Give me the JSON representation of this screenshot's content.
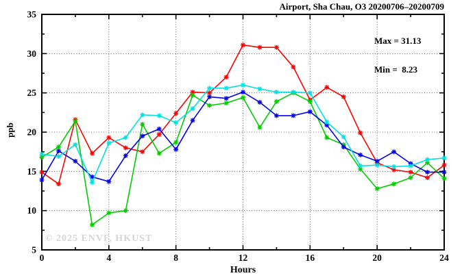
{
  "title": "Airport, Sha Chau, O3 20200706–20200709",
  "legend": {
    "max_label": "Max = 31.13",
    "min_label": "Min =  8.23"
  },
  "watermark": "© 2025 ENVF, HKUST",
  "chart_data": {
    "type": "line",
    "title": "Airport, Sha Chau, O3 20200706–20200709",
    "xlabel": "Hours",
    "ylabel": "ppb",
    "xlim": [
      0,
      24
    ],
    "ylim": [
      5,
      35
    ],
    "xticks": [
      0,
      4,
      8,
      12,
      16,
      20,
      24
    ],
    "yticks": [
      5,
      10,
      15,
      20,
      25,
      30,
      35
    ],
    "x_minor_step": 2,
    "y_minor_step": 2.5,
    "grid": true,
    "legend_position": "top-right-inside",
    "marker": "asterisk",
    "stats": {
      "max": 31.13,
      "min": 8.23
    },
    "x": [
      0,
      1,
      2,
      3,
      4,
      5,
      6,
      7,
      8,
      9,
      10,
      11,
      12,
      13,
      14,
      15,
      16,
      17,
      18,
      19,
      20,
      21,
      22,
      23,
      24
    ],
    "series": [
      {
        "name": "red",
        "color": "#ff0000",
        "values": [
          14.9,
          13.4,
          21.6,
          17.3,
          19.3,
          18.0,
          17.5,
          19.7,
          22.4,
          25.1,
          25.0,
          27.0,
          31.1,
          30.8,
          30.8,
          28.3,
          24.1,
          25.7,
          24.5,
          19.9,
          16.1,
          15.2,
          14.9,
          14.2,
          15.8
        ]
      },
      {
        "name": "green",
        "color": "#00cc00",
        "values": [
          16.8,
          18.1,
          21.4,
          8.2,
          9.7,
          10.0,
          21.0,
          17.3,
          18.7,
          24.7,
          23.4,
          23.7,
          24.4,
          20.6,
          23.9,
          25.0,
          23.9,
          19.3,
          18.4,
          15.3,
          12.8,
          13.4,
          14.2,
          16.1,
          14.1
        ]
      },
      {
        "name": "blue",
        "color": "#0000ee",
        "values": [
          13.9,
          17.6,
          16.3,
          14.3,
          13.7,
          17.0,
          19.5,
          20.4,
          17.8,
          21.5,
          24.5,
          24.3,
          25.1,
          23.8,
          22.1,
          22.1,
          22.6,
          20.9,
          18.1,
          17.1,
          16.3,
          17.5,
          16.0,
          14.9,
          14.9
        ]
      },
      {
        "name": "cyan",
        "color": "#00e0e0",
        "values": [
          17.2,
          16.9,
          18.4,
          13.6,
          18.6,
          19.3,
          22.2,
          22.1,
          21.2,
          23.0,
          25.6,
          25.6,
          26.0,
          25.5,
          25.1,
          25.1,
          25.0,
          21.3,
          19.4,
          15.7,
          15.8,
          15.6,
          15.7,
          16.5,
          16.7
        ]
      }
    ]
  }
}
